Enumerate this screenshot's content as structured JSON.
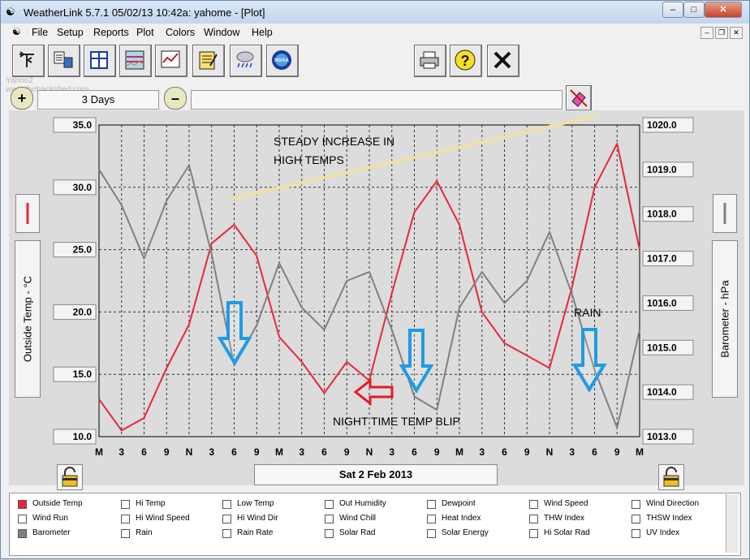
{
  "window": {
    "title": "WeatherLink 5.7.1  05/02/13  10:42a: yahome - [Plot]",
    "min_label": "–",
    "max_label": "□",
    "close_label": "✕"
  },
  "menu": [
    "File",
    "Setup",
    "Reports",
    "Plot",
    "Colors",
    "Window",
    "Help"
  ],
  "toolbar": {
    "left_icons": [
      "weather-vane-icon",
      "station-icon",
      "bulletin-icon",
      "strip-chart-icon",
      "graph-icon",
      "notepad-icon",
      "storm-icon",
      "noaa-icon"
    ],
    "right_icons": [
      "printer-icon",
      "help-icon",
      "close-x-icon"
    ]
  },
  "range": {
    "zoom_in": "+",
    "zoom_out": "–",
    "label": "3 Days"
  },
  "plot": {
    "left_axis_title": "Outside Temp - °C",
    "right_axis_title": "Barometer - hPa",
    "left_ticks": [
      "35.0",
      "30.0",
      "25.0",
      "20.0",
      "15.0",
      "10.0"
    ],
    "right_ticks": [
      "1020.0",
      "1019.0",
      "1018.0",
      "1017.0",
      "1016.0",
      "1015.0",
      "1014.0",
      "1013.0"
    ],
    "x_ticks": [
      "M",
      "3",
      "6",
      "9",
      "N",
      "3",
      "6",
      "9",
      "M",
      "3",
      "6",
      "9",
      "N",
      "3",
      "6",
      "9",
      "M",
      "3",
      "6",
      "9",
      "N",
      "3",
      "6",
      "9",
      "M"
    ],
    "date_label": "Sat 2 Feb 2013",
    "annotations": {
      "line1": "STEADY INCREASE IN",
      "line2": "HIGH TEMPS",
      "blip": "NIGHT  TIME TEMP BLIP",
      "rain": "RAIN"
    },
    "colors": {
      "temp": "#e8263c",
      "baro": "#808080",
      "arrow_blue": "#1e9be6",
      "arrow_red": "#e01c24",
      "trend": "#f0e0a8"
    }
  },
  "chart_data": {
    "type": "line",
    "x": [
      0,
      3,
      6,
      9,
      12,
      15,
      18,
      21,
      24,
      27,
      30,
      33,
      36,
      39,
      42,
      45,
      48,
      51,
      54,
      57,
      60,
      63,
      66,
      69,
      72
    ],
    "xlabel": "",
    "ylabel": "Outside Temp - °C",
    "y2label": "Barometer - hPa",
    "ylim": [
      10.0,
      35.0
    ],
    "y2lim": [
      1013.0,
      1020.0
    ],
    "grid": true,
    "series": [
      {
        "name": "Outside Temp",
        "axis": "left",
        "values": [
          13,
          10.5,
          11.5,
          15.5,
          19,
          25.5,
          27,
          24.5,
          18,
          16,
          13.5,
          16,
          14.5,
          21.5,
          28,
          30.5,
          27,
          20,
          17.5,
          16.5,
          15.5,
          22,
          30,
          33.5,
          25
        ]
      },
      {
        "name": "Barometer",
        "axis": "right",
        "values": [
          1019,
          1018.2,
          1017,
          1018.3,
          1019.1,
          1017.1,
          1014.6,
          1015.5,
          1016.9,
          1015.9,
          1015.4,
          1016.5,
          1016.7,
          1015.4,
          1013.9,
          1013.6,
          1015.9,
          1016.7,
          1016.0,
          1016.5,
          1017.6,
          1016.2,
          1014.5,
          1013.2,
          1015.4
        ]
      }
    ]
  },
  "legend": [
    [
      "Outside Temp",
      "Hi Temp",
      "Low Temp",
      "Out Humidity",
      "Dewpoint",
      "Wind Speed",
      "Wind Direction"
    ],
    [
      "Wind Run",
      "Hi Wind Speed",
      "Hi Wind Dir",
      "Wind Chill",
      "Heat Index",
      "THW Index",
      "THSW Index"
    ],
    [
      "Barometer",
      "Rain",
      "Rain Rate",
      "Solar Rad",
      "Solar Energy",
      "Hi Solar Rad",
      "UV Index"
    ]
  ],
  "legend_checked": [
    "Outside Temp",
    "Barometer"
  ],
  "watermark": [
    "Yahoo2",
    "www.thebackshed.com"
  ]
}
